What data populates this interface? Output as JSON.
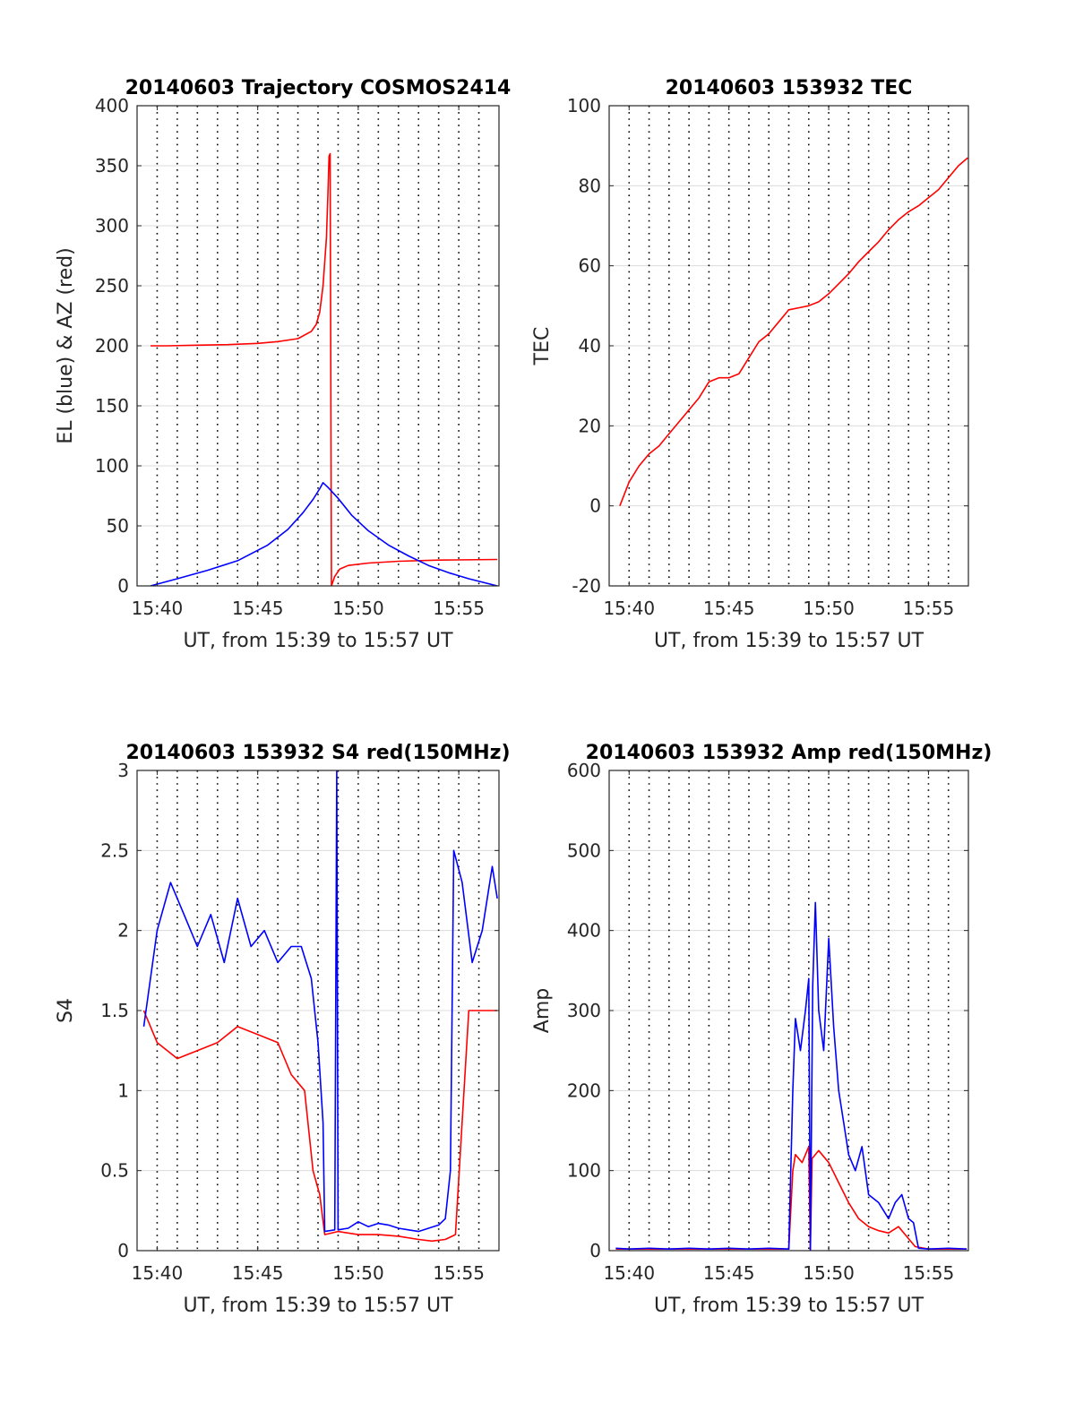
{
  "chart_data": [
    {
      "type": "line",
      "title": "20140603 Trajectory COSMOS2414",
      "xlabel": "UT, from 15:39 to 15:57 UT",
      "ylabel": "EL (blue) & AZ (red)",
      "xlim": [
        "15:39",
        "15:57"
      ],
      "ylim": [
        0,
        400
      ],
      "xticks": [
        "15:40",
        "15:45",
        "15:50",
        "15:55"
      ],
      "yticks": [
        0,
        50,
        100,
        150,
        200,
        250,
        300,
        350,
        400
      ],
      "grid": "on",
      "legend": "none",
      "series": [
        {
          "color": "#ff0000",
          "x": [
            "15:39:40",
            "15:40:30",
            "15:42:00",
            "15:43:30",
            "15:45:00",
            "15:46:00",
            "15:47:00",
            "15:47:40",
            "15:47:55",
            "15:48:05",
            "15:48:15",
            "15:48:25",
            "15:48:30",
            "15:48:33",
            "15:48:36",
            "15:48:40",
            "15:48:50",
            "15:49:05",
            "15:49:30",
            "15:50:30",
            "15:52:00",
            "15:54:00",
            "15:56:55"
          ],
          "values": [
            200,
            200,
            200.5,
            201,
            202,
            203.5,
            206,
            212,
            218,
            228,
            250,
            290,
            330,
            358,
            360,
            0,
            8,
            14,
            17,
            19,
            20.5,
            21.5,
            22
          ]
        },
        {
          "color": "#0000ff",
          "x": [
            "15:39:40",
            "15:41:00",
            "15:42:30",
            "15:44:00",
            "15:45:30",
            "15:46:30",
            "15:47:15",
            "15:47:45",
            "15:48:05",
            "15:48:15",
            "15:48:30",
            "15:49:00",
            "15:49:40",
            "15:50:30",
            "15:51:30",
            "15:52:30",
            "15:53:30",
            "15:54:30",
            "15:55:30",
            "15:56:55"
          ],
          "values": [
            0,
            6,
            13,
            21,
            34,
            47,
            61,
            72,
            81,
            86,
            82,
            73,
            59,
            46,
            34,
            25,
            17,
            11,
            6,
            0
          ]
        }
      ]
    },
    {
      "type": "line",
      "title": "20140603 153932 TEC",
      "xlabel": "UT, from 15:39 to 15:57 UT",
      "ylabel": "TEC",
      "xlim": [
        "15:39",
        "15:57"
      ],
      "ylim": [
        -20,
        100
      ],
      "xticks": [
        "15:40",
        "15:45",
        "15:50",
        "15:55"
      ],
      "yticks": [
        -20,
        0,
        20,
        40,
        60,
        80,
        100
      ],
      "grid": "on",
      "legend": "none",
      "series": [
        {
          "color": "#ff0000",
          "x": [
            "15:39:32",
            "15:40:00",
            "15:40:30",
            "15:41:00",
            "15:41:30",
            "15:42:00",
            "15:42:30",
            "15:43:00",
            "15:43:30",
            "15:44:00",
            "15:44:30",
            "15:45:00",
            "15:45:30",
            "15:46:00",
            "15:46:30",
            "15:47:00",
            "15:47:30",
            "15:48:00",
            "15:48:30",
            "15:49:00",
            "15:49:30",
            "15:50:00",
            "15:50:30",
            "15:51:00",
            "15:51:30",
            "15:52:00",
            "15:52:30",
            "15:53:00",
            "15:53:30",
            "15:54:00",
            "15:54:30",
            "15:55:00",
            "15:55:30",
            "15:56:00",
            "15:56:30",
            "15:56:58"
          ],
          "values": [
            0,
            6,
            10,
            13,
            15,
            18,
            21,
            24,
            27,
            31,
            32,
            32,
            33,
            37,
            41,
            43,
            46,
            49,
            49.5,
            50,
            51,
            53,
            55.5,
            58,
            61,
            63.5,
            66,
            69,
            71.5,
            73.5,
            75,
            77,
            79,
            82,
            85,
            87
          ]
        }
      ]
    },
    {
      "type": "line",
      "title": "20140603 153932 S4 red(150MHz)",
      "xlabel": "UT, from 15:39 to 15:57 UT",
      "ylabel": "S4",
      "xlim": [
        "15:39",
        "15:57"
      ],
      "ylim": [
        0,
        3
      ],
      "xticks": [
        "15:40",
        "15:45",
        "15:50",
        "15:55"
      ],
      "yticks": [
        0,
        0.5,
        1,
        1.5,
        2,
        2.5,
        3
      ],
      "grid": "on",
      "legend": "none",
      "series": [
        {
          "color": "#ff0000",
          "x": [
            "15:39:20",
            "15:40:00",
            "15:41:00",
            "15:42:00",
            "15:43:00",
            "15:44:00",
            "15:45:00",
            "15:46:00",
            "15:46:40",
            "15:47:20",
            "15:47:45",
            "15:48:05",
            "15:48:20",
            "15:49:00",
            "15:50:00",
            "15:51:00",
            "15:52:00",
            "15:53:00",
            "15:53:40",
            "15:54:20",
            "15:54:50",
            "15:55:30",
            "15:56:10",
            "15:56:55"
          ],
          "values": [
            1.5,
            1.3,
            1.2,
            1.25,
            1.3,
            1.4,
            1.35,
            1.3,
            1.1,
            1.0,
            0.5,
            0.35,
            0.1,
            0.12,
            0.1,
            0.1,
            0.09,
            0.07,
            0.06,
            0.07,
            0.1,
            1.5,
            1.5,
            1.5
          ]
        },
        {
          "color": "#0000ff",
          "x": [
            "15:39:20",
            "15:40:00",
            "15:40:40",
            "15:41:20",
            "15:42:00",
            "15:42:40",
            "15:43:20",
            "15:44:00",
            "15:44:40",
            "15:45:20",
            "15:46:00",
            "15:46:40",
            "15:47:10",
            "15:47:40",
            "15:48:00",
            "15:48:15",
            "15:48:20",
            "15:48:50",
            "15:48:56",
            "15:49:00",
            "15:49:30",
            "15:50:00",
            "15:50:30",
            "15:51:00",
            "15:51:30",
            "15:52:00",
            "15:52:30",
            "15:53:00",
            "15:53:30",
            "15:54:00",
            "15:54:20",
            "15:54:35",
            "15:54:45",
            "15:55:10",
            "15:55:40",
            "15:56:10",
            "15:56:40",
            "15:56:55"
          ],
          "values": [
            1.4,
            2.0,
            2.3,
            2.1,
            1.9,
            2.1,
            1.8,
            2.2,
            1.9,
            2.0,
            1.8,
            1.9,
            1.9,
            1.7,
            1.3,
            0.8,
            0.12,
            0.13,
            3.0,
            0.13,
            0.14,
            0.18,
            0.15,
            0.17,
            0.16,
            0.14,
            0.13,
            0.12,
            0.14,
            0.16,
            0.2,
            0.5,
            2.5,
            2.3,
            1.8,
            2.0,
            2.4,
            2.2
          ]
        }
      ]
    },
    {
      "type": "line",
      "title": "20140603 153932 Amp red(150MHz)",
      "xlabel": "UT, from 15:39 to 15:57 UT",
      "ylabel": "Amp",
      "xlim": [
        "15:39",
        "15:57"
      ],
      "ylim": [
        0,
        600
      ],
      "xticks": [
        "15:40",
        "15:45",
        "15:50",
        "15:55"
      ],
      "yticks": [
        0,
        100,
        200,
        300,
        400,
        500,
        600
      ],
      "grid": "on",
      "legend": "none",
      "series": [
        {
          "color": "#ff0000",
          "x": [
            "15:39:20",
            "15:42:00",
            "15:45:00",
            "15:48:00",
            "15:48:12",
            "15:48:20",
            "15:48:40",
            "15:49:00",
            "15:49:05",
            "15:49:10",
            "15:49:30",
            "15:50:00",
            "15:50:30",
            "15:51:00",
            "15:51:30",
            "15:52:00",
            "15:52:30",
            "15:53:00",
            "15:53:30",
            "15:54:00",
            "15:54:20",
            "15:55:00",
            "15:56:55"
          ],
          "values": [
            2,
            2,
            2,
            2,
            100,
            120,
            110,
            130,
            0,
            115,
            125,
            110,
            85,
            60,
            40,
            30,
            25,
            22,
            30,
            15,
            5,
            2,
            2
          ]
        },
        {
          "color": "#0000ff",
          "x": [
            "15:39:20",
            "15:40:00",
            "15:41:00",
            "15:42:00",
            "15:43:00",
            "15:44:00",
            "15:45:00",
            "15:46:00",
            "15:47:00",
            "15:48:00",
            "15:48:12",
            "15:48:20",
            "15:48:35",
            "15:48:50",
            "15:49:00",
            "15:49:05",
            "15:49:12",
            "15:49:20",
            "15:49:30",
            "15:49:45",
            "15:50:00",
            "15:50:15",
            "15:50:30",
            "15:50:45",
            "15:51:00",
            "15:51:20",
            "15:51:40",
            "15:52:00",
            "15:52:30",
            "15:53:00",
            "15:53:20",
            "15:53:40",
            "15:54:00",
            "15:54:15",
            "15:54:30",
            "15:55:00",
            "15:56:00",
            "15:56:55"
          ],
          "values": [
            3,
            2,
            3,
            2,
            3,
            2,
            3,
            2,
            3,
            2,
            200,
            290,
            250,
            300,
            340,
            0,
            330,
            435,
            300,
            250,
            390,
            280,
            200,
            160,
            120,
            100,
            130,
            70,
            60,
            40,
            60,
            70,
            40,
            35,
            3,
            2,
            3,
            2
          ]
        }
      ]
    }
  ]
}
